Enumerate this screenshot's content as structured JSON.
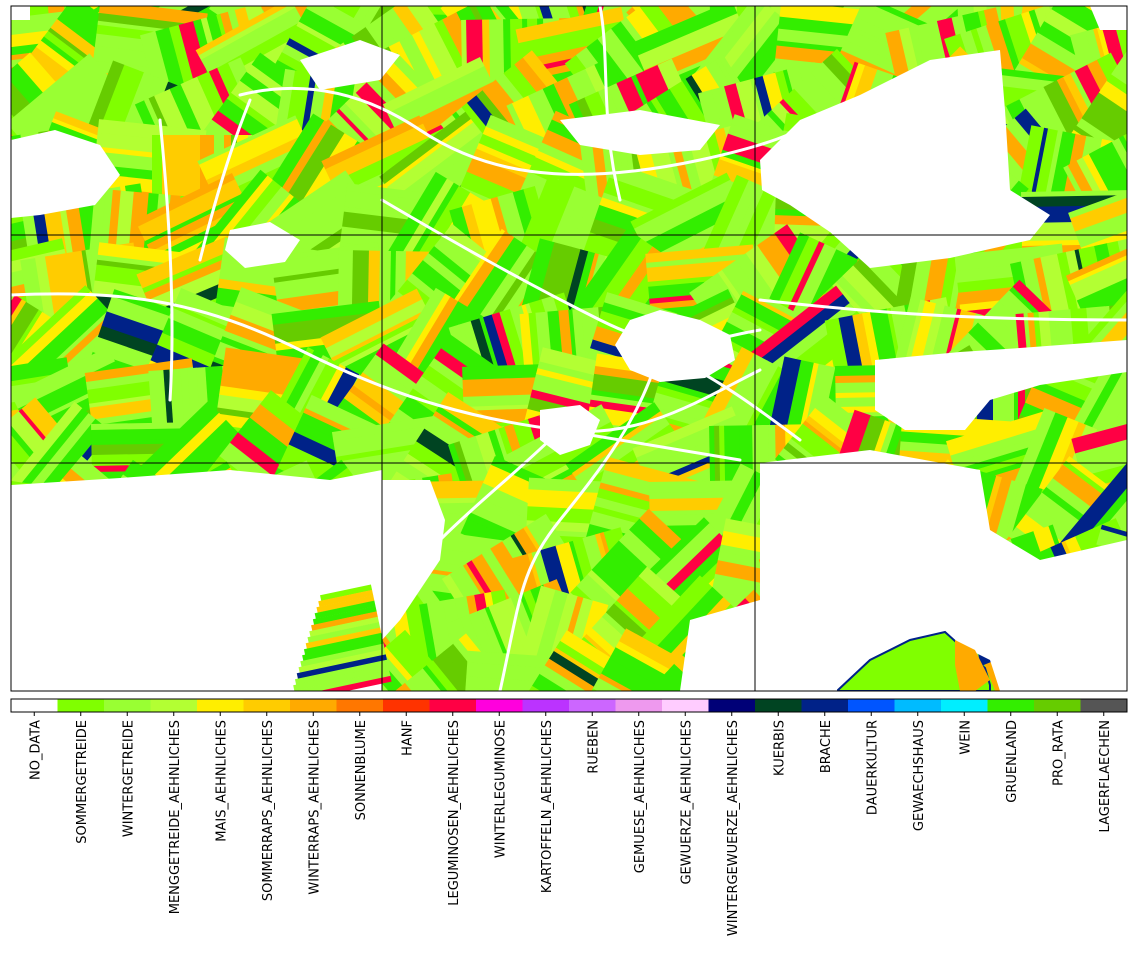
{
  "map": {
    "type": "crop-classification-raster",
    "grid": {
      "columns": 3,
      "rows": 3
    },
    "background": "#ffffff",
    "features": [
      {
        "name": "field-parcels",
        "dominant_colors": [
          "#99ff33",
          "#33ee00",
          "#ffdd00",
          "#ffaa00",
          "#ff0044",
          "#002288",
          "#004422"
        ]
      },
      {
        "name": "village-settlement-center",
        "color": "#ffffff"
      },
      {
        "name": "roads",
        "color": "#ffffff"
      },
      {
        "name": "no-data-areas",
        "color": "#ffffff"
      }
    ]
  },
  "legend": {
    "items": [
      {
        "label": "NO_DATA",
        "color": "#ffffff"
      },
      {
        "label": "SOMMERGETREIDE",
        "color": "#80ff00"
      },
      {
        "label": "WINTERGETREIDE",
        "color": "#99ff33"
      },
      {
        "label": "MENGGETREIDE_AEHNLICHES",
        "color": "#b3ff33"
      },
      {
        "label": "MAIS_AEHNLICHES",
        "color": "#ffee00"
      },
      {
        "label": "SOMMERRAPS_AEHNLICHES",
        "color": "#ffcc00"
      },
      {
        "label": "WINTERRAPS_AEHNLICHES",
        "color": "#ffaa00"
      },
      {
        "label": "SONNENBLUME",
        "color": "#ff7700"
      },
      {
        "label": "HANF",
        "color": "#ff3300"
      },
      {
        "label": "LEGUMINOSEN_AEHNLICHES",
        "color": "#ff0044"
      },
      {
        "label": "WINTERLEGUMINOSE",
        "color": "#ff00dd"
      },
      {
        "label": "KARTOFFELN_AEHNLICHES",
        "color": "#bb33ff"
      },
      {
        "label": "RUEBEN",
        "color": "#cc66ff"
      },
      {
        "label": "GEMUESE_AEHNLICHES",
        "color": "#ee99ee"
      },
      {
        "label": "GEWUERZE_AEHNLICHES",
        "color": "#ffccff"
      },
      {
        "label": "WINTERGEWUERZE_AEHNLICHES",
        "color": "#000077"
      },
      {
        "label": "KUERBIS",
        "color": "#004422"
      },
      {
        "label": "BRACHE",
        "color": "#002288"
      },
      {
        "label": "DAUERKULTUR",
        "color": "#0055ff"
      },
      {
        "label": "GEWAECHSHAUS",
        "color": "#00bbff"
      },
      {
        "label": "WEIN",
        "color": "#00eeff"
      },
      {
        "label": "GRUENLAND",
        "color": "#33ee00"
      },
      {
        "label": "PRO_RATA",
        "color": "#66cc00"
      },
      {
        "label": "LAGERFLAECHEN",
        "color": "#555555"
      }
    ]
  }
}
